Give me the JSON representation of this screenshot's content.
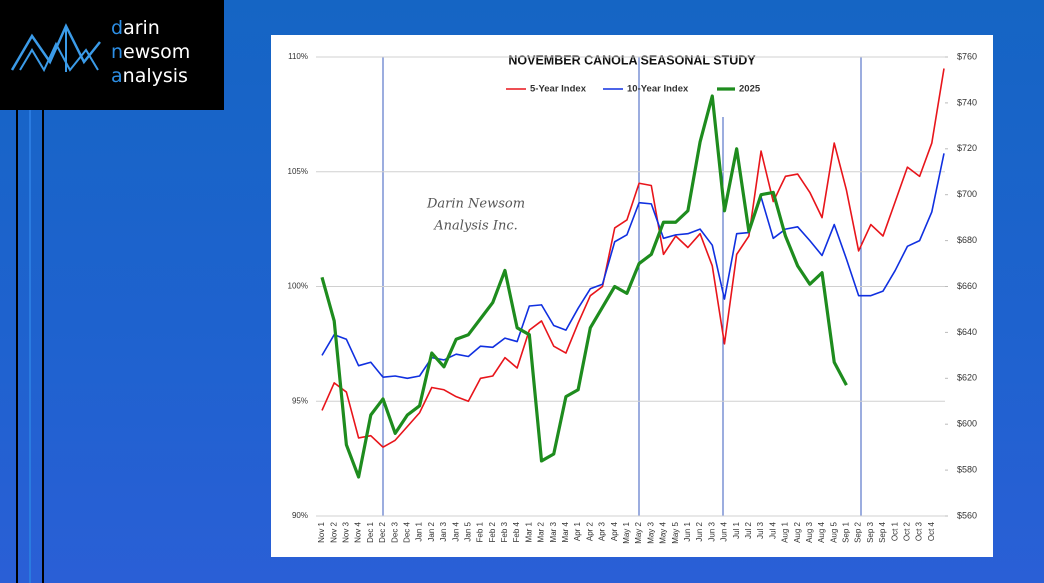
{
  "logo": {
    "lines": [
      "darin",
      "newsom",
      "analysis"
    ]
  },
  "chart_data": {
    "type": "line",
    "title": "NOVEMBER CANOLA SEASONAL STUDY",
    "watermark": [
      "Darin Newsom",
      "Analysis Inc."
    ],
    "categories": [
      "Nov 1",
      "Nov 2",
      "Nov 3",
      "Nov 4",
      "Dec 1",
      "Dec 2",
      "Dec 3",
      "Dec 4",
      "Jan 1",
      "Jan 2",
      "Jan 3",
      "Jan 4",
      "Jan 5",
      "Feb 1",
      "Feb 2",
      "Feb 3",
      "Feb 4",
      "Mar 1",
      "Mar 2",
      "Mar 3",
      "Mar 4",
      "Apr 1",
      "Apr 2",
      "Apr 3",
      "Apr 4",
      "May 1",
      "May 2",
      "May 3",
      "May 4",
      "May 5",
      "Jun 1",
      "Jun 2",
      "Jun 3",
      "Jun 4",
      "Jul 1",
      "Jul 2",
      "Jul 3",
      "Jul 4",
      "Aug 1",
      "Aug 2",
      "Aug 3",
      "Aug 4",
      "Aug 5",
      "Sep 1",
      "Sep 2",
      "Sep 3",
      "Sep 4",
      "Oct 1",
      "Oct 2",
      "Oct 3",
      "Oct 4",
      null
    ],
    "series": [
      {
        "name": "5-Year Index",
        "color": "#e8151b",
        "width": 1.6,
        "values": [
          94.6,
          95.8,
          95.4,
          93.4,
          93.5,
          93.0,
          93.3,
          93.9,
          94.5,
          95.6,
          95.5,
          95.2,
          95.0,
          96.0,
          96.1,
          96.9,
          96.45,
          98.1,
          98.5,
          97.4,
          97.1,
          98.4,
          99.6,
          100.0,
          102.55,
          102.9,
          104.5,
          104.4,
          101.4,
          102.2,
          101.7,
          102.3,
          100.9,
          97.5,
          101.4,
          102.2,
          105.9,
          103.7,
          104.8,
          104.9,
          104.1,
          103.0,
          106.25,
          104.2,
          101.55,
          102.7,
          102.2,
          103.7,
          105.2,
          104.8,
          106.25,
          109.5
        ]
      },
      {
        "name": "10-Year Index",
        "color": "#1030e0",
        "width": 1.6,
        "values": [
          97.0,
          97.9,
          97.7,
          96.55,
          96.7,
          96.05,
          96.1,
          96.0,
          96.1,
          96.9,
          96.8,
          97.05,
          96.95,
          97.4,
          97.35,
          97.75,
          97.6,
          99.15,
          99.2,
          98.3,
          98.1,
          99.05,
          99.9,
          100.1,
          101.95,
          102.25,
          103.65,
          103.6,
          102.1,
          102.25,
          102.3,
          102.5,
          101.8,
          99.45,
          102.3,
          102.35,
          103.9,
          102.1,
          102.5,
          102.6,
          102.0,
          101.35,
          102.7,
          101.2,
          99.6,
          99.6,
          99.8,
          100.7,
          101.75,
          102.0,
          103.25,
          105.8
        ]
      },
      {
        "name": "2025",
        "color": "#1e8c1e",
        "width": 3.2,
        "axis": "y2",
        "values": [
          664,
          645,
          591,
          577,
          604,
          611,
          596,
          604,
          608,
          631,
          625,
          637,
          639,
          646,
          653,
          667,
          642,
          639,
          584,
          587,
          612,
          615,
          642,
          651,
          660,
          657,
          670,
          674,
          688,
          688,
          693,
          723,
          743,
          693,
          720,
          684,
          700,
          701,
          682,
          669,
          661,
          666,
          627,
          617,
          null,
          null,
          null,
          null,
          null,
          null,
          null,
          null
        ]
      }
    ],
    "ylim": [
      90,
      110
    ],
    "yticks": [
      {
        "value": 90,
        "label": "90%"
      },
      {
        "value": 95,
        "label": "95%"
      },
      {
        "value": 100,
        "label": "100%"
      },
      {
        "value": 105,
        "label": "105%"
      },
      {
        "value": 110,
        "label": "110%"
      }
    ],
    "y2lim": [
      560,
      760
    ],
    "y2ticks": [
      {
        "value": 560,
        "label": "$560"
      },
      {
        "value": 580,
        "label": "$580"
      },
      {
        "value": 600,
        "label": "$600"
      },
      {
        "value": 620,
        "label": "$620"
      },
      {
        "value": 640,
        "label": "$640"
      },
      {
        "value": 660,
        "label": "$660"
      },
      {
        "value": 680,
        "label": "$680"
      },
      {
        "value": 700,
        "label": "$700"
      },
      {
        "value": 720,
        "label": "$720"
      },
      {
        "value": 740,
        "label": "$740"
      },
      {
        "value": 760,
        "label": "$760"
      }
    ],
    "grid": true,
    "legend": "top"
  }
}
